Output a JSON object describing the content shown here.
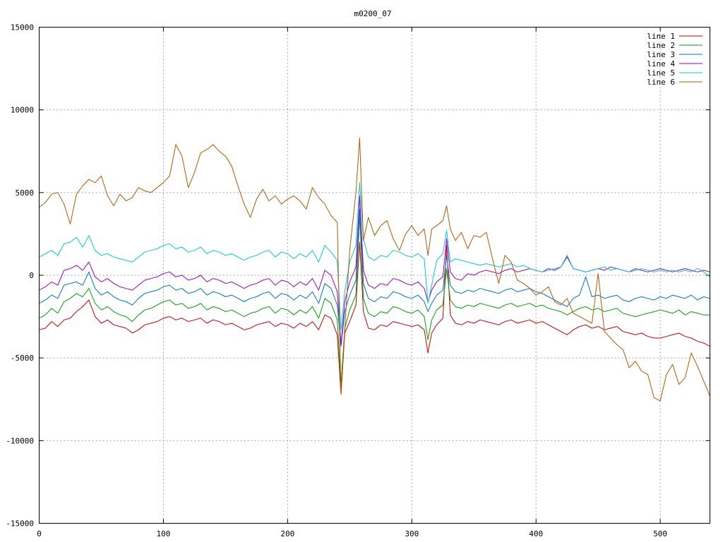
{
  "chart_data": {
    "type": "line",
    "title": "m0200_07",
    "xlabel": "",
    "ylabel": "",
    "xlim": [
      0,
      540
    ],
    "ylim": [
      -15000,
      15000
    ],
    "xticks": [
      0,
      100,
      200,
      300,
      400,
      500
    ],
    "yticks": [
      -15000,
      -10000,
      -5000,
      0,
      5000,
      10000,
      15000
    ],
    "grid": true,
    "legend_position": "top-right",
    "x": [
      0,
      5,
      10,
      15,
      20,
      25,
      30,
      35,
      40,
      45,
      50,
      55,
      60,
      65,
      70,
      75,
      80,
      85,
      90,
      95,
      100,
      105,
      110,
      115,
      120,
      125,
      130,
      135,
      140,
      145,
      150,
      155,
      160,
      165,
      170,
      175,
      180,
      185,
      190,
      195,
      200,
      205,
      210,
      215,
      220,
      225,
      230,
      235,
      240,
      243,
      246,
      250,
      255,
      258,
      261,
      265,
      270,
      275,
      280,
      285,
      290,
      295,
      300,
      305,
      310,
      313,
      316,
      320,
      325,
      328,
      331,
      335,
      340,
      345,
      350,
      355,
      360,
      365,
      370,
      375,
      380,
      385,
      390,
      395,
      400,
      405,
      410,
      415,
      420,
      425,
      430,
      435,
      440,
      445,
      450,
      455,
      460,
      465,
      470,
      475,
      480,
      485,
      490,
      495,
      500,
      505,
      510,
      515,
      520,
      525,
      530,
      535,
      540
    ],
    "series": [
      {
        "name": "line 1",
        "color": "#cc0000",
        "values": [
          -3300,
          -3200,
          -2800,
          -3100,
          -2700,
          -2600,
          -2200,
          -1900,
          -1500,
          -2500,
          -2900,
          -2700,
          -3000,
          -3100,
          -3200,
          -3500,
          -3300,
          -3000,
          -2900,
          -2800,
          -2600,
          -2500,
          -2700,
          -2600,
          -2800,
          -2700,
          -2600,
          -2900,
          -2700,
          -2800,
          -3000,
          -2900,
          -3100,
          -3300,
          -3200,
          -3000,
          -2900,
          -2800,
          -3100,
          -2900,
          -3000,
          -3200,
          -2900,
          -3100,
          -2800,
          -3300,
          -2400,
          -2600,
          -3600,
          -7200,
          -3500,
          -2800,
          -1800,
          2000,
          -2200,
          -3200,
          -3300,
          -3000,
          -3100,
          -2800,
          -2900,
          -3000,
          -3100,
          -3000,
          -3300,
          -4700,
          -3500,
          -3000,
          -2600,
          1800,
          -2400,
          -2900,
          -3000,
          -2800,
          -2900,
          -2700,
          -2800,
          -2900,
          -3000,
          -2800,
          -2700,
          -2900,
          -2800,
          -2700,
          -2900,
          -2800,
          -3000,
          -3200,
          -3400,
          -3600,
          -3300,
          -3100,
          -3000,
          -3200,
          -3100,
          -3300,
          -3200,
          -3100,
          -3400,
          -3500,
          -3600,
          -3500,
          -3700,
          -3800,
          -3800,
          -3700,
          -3600,
          -3500,
          -3700,
          -3800,
          -4000,
          -4100,
          -4300
        ]
      },
      {
        "name": "line 2",
        "color": "#00a000",
        "values": [
          -2600,
          -2400,
          -2000,
          -2300,
          -1600,
          -1400,
          -1100,
          -1300,
          -800,
          -1700,
          -2100,
          -1900,
          -2200,
          -2400,
          -2500,
          -2800,
          -2400,
          -2100,
          -2000,
          -1800,
          -1600,
          -1500,
          -1800,
          -1700,
          -2000,
          -1900,
          -1700,
          -2100,
          -1900,
          -2000,
          -2200,
          -2100,
          -2300,
          -2500,
          -2300,
          -2200,
          -2000,
          -1900,
          -2300,
          -2000,
          -2100,
          -2400,
          -2100,
          -2300,
          -1900,
          -2600,
          -1400,
          -1700,
          -2700,
          -6600,
          -3200,
          -2100,
          -1200,
          3600,
          -1400,
          -2300,
          -2500,
          -2200,
          -2300,
          -1900,
          -2000,
          -2200,
          -2300,
          -2100,
          -2500,
          -3900,
          -2700,
          -2100,
          -1800,
          400,
          -1500,
          -1900,
          -2000,
          -1800,
          -1900,
          -1700,
          -1800,
          -1900,
          -2000,
          -1800,
          -1700,
          -1900,
          -1800,
          -1700,
          -1900,
          -1800,
          -2000,
          -2100,
          -2200,
          -2400,
          -2200,
          -2000,
          -1900,
          -2100,
          -2000,
          -2200,
          -2100,
          -2000,
          -2300,
          -2400,
          -2500,
          -2400,
          -2300,
          -2200,
          -2100,
          -2200,
          -2300,
          -2100,
          -2400,
          -2200,
          -2300,
          -2400,
          -2400
        ]
      },
      {
        "name": "line 3",
        "color": "#0070cc",
        "values": [
          -1700,
          -1500,
          -1200,
          -1400,
          -600,
          -500,
          -400,
          -600,
          200,
          -800,
          -1200,
          -1000,
          -1300,
          -1500,
          -1600,
          -1800,
          -1400,
          -1100,
          -1000,
          -900,
          -700,
          -600,
          -900,
          -800,
          -1100,
          -1000,
          -800,
          -1200,
          -1000,
          -1100,
          -1300,
          -1200,
          -1400,
          -1600,
          -1400,
          -1300,
          -1100,
          -1000,
          -1400,
          -1100,
          -1200,
          -1500,
          -1200,
          -1400,
          -1000,
          -1700,
          -500,
          -800,
          -1800,
          -4300,
          -2200,
          -1200,
          -300,
          4000,
          -500,
          -1400,
          -1600,
          -1300,
          -1400,
          -1000,
          -1100,
          -1300,
          -1400,
          -1200,
          -1600,
          -2200,
          -1700,
          -1200,
          -900,
          1200,
          -600,
          -1000,
          -1100,
          -900,
          -1000,
          -800,
          -900,
          -1000,
          -1100,
          -900,
          -800,
          -1000,
          -900,
          -800,
          -1000,
          -1100,
          -1300,
          -1500,
          -1700,
          -1900,
          -1400,
          -1200,
          -100,
          -1300,
          -1200,
          -1400,
          -1300,
          -1200,
          -1500,
          -1600,
          -1400,
          -1300,
          -1400,
          -1500,
          -1300,
          -1400,
          -1200,
          -1300,
          -1400,
          -1200,
          -1500,
          -1300,
          -1400
        ]
      },
      {
        "name": "line 4",
        "color": "#9900cc",
        "values": [
          -900,
          -700,
          -400,
          -600,
          300,
          400,
          600,
          300,
          800,
          -100,
          -400,
          -200,
          -500,
          -700,
          -800,
          -900,
          -600,
          -300,
          -200,
          -100,
          100,
          200,
          -100,
          0,
          -300,
          -200,
          0,
          -400,
          -200,
          -300,
          -500,
          -400,
          -600,
          -800,
          -600,
          -500,
          -300,
          -200,
          -600,
          -300,
          -400,
          -700,
          -400,
          -600,
          -200,
          -900,
          300,
          0,
          -1000,
          -4200,
          -1600,
          -400,
          500,
          4800,
          300,
          -600,
          -800,
          -500,
          -600,
          -200,
          -300,
          -500,
          -600,
          -400,
          -800,
          -1600,
          -900,
          -400,
          -100,
          2200,
          200,
          -200,
          -300,
          100,
          0,
          200,
          300,
          200,
          100,
          300,
          400,
          200,
          300,
          400,
          300,
          200,
          400,
          300,
          500,
          1100,
          400,
          300,
          200,
          300,
          400,
          300,
          500,
          400,
          300,
          200,
          400,
          300,
          200,
          300,
          400,
          300,
          200,
          300,
          400,
          300,
          200,
          300,
          200
        ]
      },
      {
        "name": "line 5",
        "color": "#00cccc",
        "values": [
          1100,
          1300,
          1500,
          1200,
          1900,
          2000,
          2300,
          1700,
          2400,
          1500,
          1200,
          1300,
          1100,
          1000,
          900,
          800,
          1100,
          1400,
          1500,
          1600,
          1800,
          1900,
          1600,
          1700,
          1400,
          1500,
          1700,
          1300,
          1500,
          1400,
          1200,
          1300,
          1100,
          900,
          1100,
          1200,
          1400,
          1500,
          1100,
          1400,
          1300,
          1000,
          1300,
          1100,
          1500,
          800,
          1800,
          1400,
          900,
          -3300,
          -1000,
          800,
          1800,
          5600,
          2200,
          1100,
          900,
          1200,
          1100,
          1500,
          1400,
          1200,
          1100,
          1300,
          1000,
          -1700,
          -600,
          900,
          1300,
          2700,
          800,
          1000,
          900,
          800,
          700,
          600,
          700,
          600,
          500,
          600,
          700,
          500,
          600,
          400,
          300,
          200,
          300,
          400,
          500,
          1200,
          400,
          300,
          200,
          300,
          400,
          500,
          300,
          400,
          300,
          200,
          300,
          400,
          300,
          200,
          300,
          200,
          300,
          200,
          300,
          200,
          400,
          200,
          -100
        ]
      },
      {
        "name": "line 6",
        "color": "#b35900",
        "values": [
          4100,
          4400,
          4900,
          5000,
          4300,
          3100,
          4900,
          5400,
          5800,
          5600,
          6000,
          4800,
          4200,
          4900,
          4500,
          4700,
          5300,
          5100,
          5000,
          5300,
          5600,
          6000,
          7900,
          7200,
          5300,
          6200,
          7400,
          7600,
          7900,
          7500,
          7200,
          6600,
          5400,
          4300,
          3500,
          4600,
          5200,
          4500,
          4800,
          4300,
          4600,
          4800,
          4500,
          4000,
          5300,
          4700,
          4300,
          3600,
          3200,
          -7200,
          -3300,
          1500,
          5000,
          8300,
          2100,
          3500,
          2400,
          3000,
          3300,
          2200,
          1500,
          2500,
          3000,
          2400,
          2800,
          1200,
          2800,
          3000,
          3300,
          4200,
          2800,
          2100,
          2600,
          1600,
          2400,
          2300,
          2600,
          1000,
          -500,
          1200,
          800,
          -300,
          -500,
          -800,
          -1200,
          -1000,
          -700,
          -1600,
          -1800,
          -1400,
          -2300,
          -2500,
          -2700,
          -2900,
          100,
          -3400,
          -3800,
          -4200,
          -4500,
          -5600,
          -5200,
          -5800,
          -6000,
          -7400,
          -7600,
          -6000,
          -5400,
          -6600,
          -6200,
          -4700,
          -5500,
          -6400,
          -7300
        ]
      }
    ]
  }
}
